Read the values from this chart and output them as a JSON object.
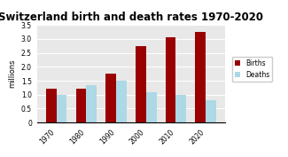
{
  "title": "Switzerland birth and death rates 1970-2020",
  "years": [
    "1970",
    "1980",
    "1990",
    "2000",
    "2010",
    "2020"
  ],
  "births": [
    1.2,
    1.2,
    1.75,
    2.75,
    3.05,
    3.25
  ],
  "deaths": [
    1.0,
    1.35,
    1.5,
    1.1,
    1.0,
    0.8
  ],
  "birth_color": "#990000",
  "death_color": "#add8e6",
  "ylabel": "millions",
  "ylim": [
    0,
    3.5
  ],
  "yticks": [
    0,
    0.5,
    1.0,
    1.5,
    2.0,
    2.5,
    3.0,
    3.5
  ],
  "legend_labels": [
    "Births",
    "Deaths"
  ],
  "title_fontsize": 8.5,
  "axis_fontsize": 6,
  "tick_fontsize": 5.5
}
